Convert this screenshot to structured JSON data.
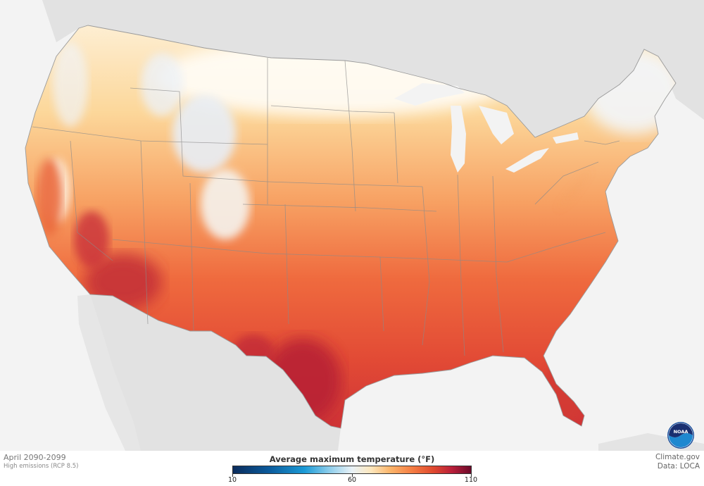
{
  "map": {
    "region": "Contiguous United States",
    "period": "April 2090-2099",
    "scenario": "High emissions (RCP 8.5)",
    "variable": "Average maximum temperature (°F)",
    "source_site": "Climate.gov",
    "data_source": "Data: LOCA",
    "logo_text": "NOAA"
  },
  "legend": {
    "title": "Average maximum temperature (°F)",
    "min": 10,
    "max": 110,
    "ticks": [
      "10",
      "60",
      "110"
    ],
    "colors": [
      "#0b2c5c",
      "#1b9ad6",
      "#e9f2f7",
      "#fde7bd",
      "#f57f44",
      "#e04a2f",
      "#6c0a2a"
    ]
  },
  "palette": {
    "land_background": "#e2e2e2",
    "water": "#f3f3f3",
    "cool": "#fefaf0",
    "mild": "#fcd79a",
    "warm": "#f5904e",
    "hot": "#e24a35",
    "hottest": "#b52035"
  }
}
